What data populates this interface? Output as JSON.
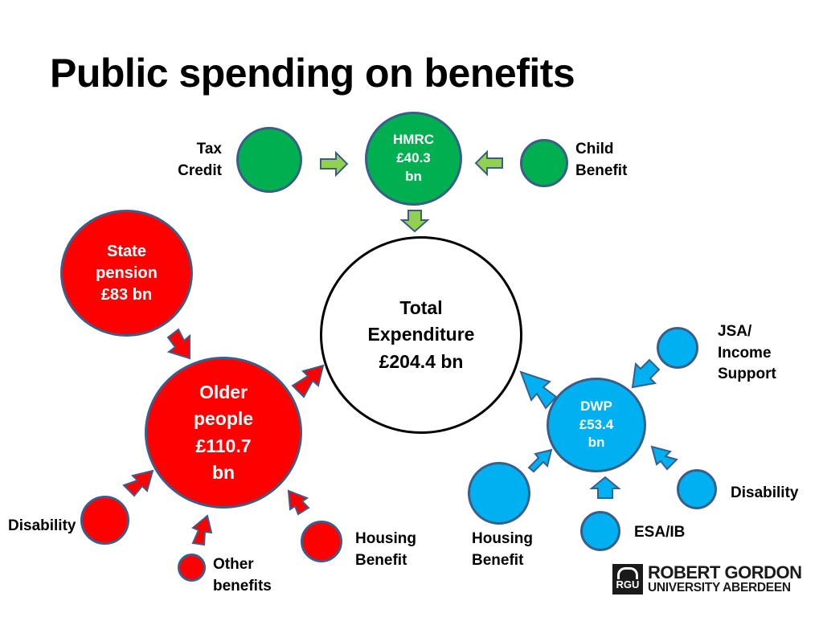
{
  "title": "Public spending on benefits",
  "nodes": {
    "hmrc": {
      "lines": [
        "HMRC",
        "£40.3",
        "bn"
      ]
    },
    "tax_credit": {
      "label": [
        "Tax",
        "Credit"
      ]
    },
    "child_benefit": {
      "label": [
        "Child",
        "Benefit"
      ]
    },
    "total": {
      "lines": [
        "Total",
        "Expenditure",
        "£204.4 bn"
      ]
    },
    "state_pension": {
      "lines": [
        "State",
        "pension",
        "£83 bn"
      ]
    },
    "older_people": {
      "lines": [
        "Older",
        "people",
        "£110.7",
        "bn"
      ]
    },
    "older_disability": {
      "label": "Disability"
    },
    "other_benefits": {
      "label": [
        "Other",
        "benefits"
      ]
    },
    "older_housing": {
      "label": [
        "Housing",
        "Benefit"
      ]
    },
    "dwp": {
      "lines": [
        "DWP",
        "£53.4",
        "bn"
      ]
    },
    "jsa": {
      "label": [
        "JSA/",
        "Income",
        "Support"
      ]
    },
    "dwp_disability": {
      "label": "Disability"
    },
    "esa": {
      "label": "ESA/IB"
    },
    "dwp_housing": {
      "label": [
        "Housing",
        "Benefit"
      ]
    }
  },
  "logo": {
    "mark": "RGU",
    "line1": "ROBERT GORDON",
    "line2": "UNIVERSITY ABERDEEN"
  },
  "colors": {
    "hmrc_group": "#00b050",
    "older_people_group": "#ff0000",
    "dwp_group": "#00b0f0",
    "circle_outline": "#3a5e8a",
    "green_arrow": "#92d050"
  }
}
